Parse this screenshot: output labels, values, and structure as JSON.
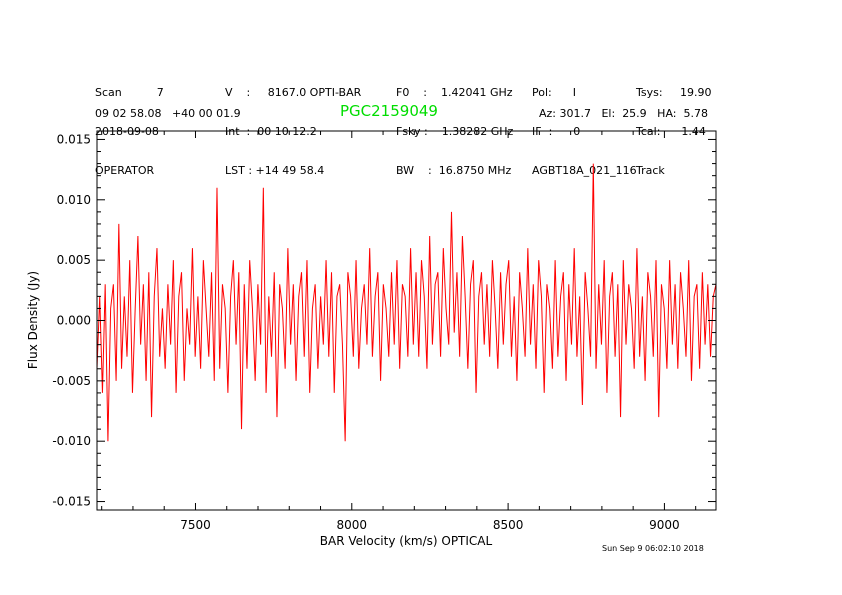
{
  "header": {
    "col1": [
      "Scan          7",
      "2018-09-08",
      "OPERATOR"
    ],
    "col2": [
      "V    :     8167.0 OPTI-BAR",
      "Int  :  00 10 12.2",
      "LST : +14 49 58.4"
    ],
    "col3": [
      "F0    :    1.42041 GHz",
      "Fsky :    1.38282 GHz",
      "BW    :  16.8750 MHz"
    ],
    "col4": [
      "Pol:      I",
      "IF  :      0",
      "AGBT18A_021_116"
    ],
    "col5": [
      "Tsys:     19.90",
      "Tcal:      1.44",
      "Track"
    ],
    "coords": "09 02 58.08   +40 00 01.9",
    "object": "PGC2159049",
    "pointing": "Az: 301.7   El:  25.9   HA:  5.78",
    "timestamp": "Sun Sep  9 06:02:10 2018"
  },
  "chart_data": {
    "type": "line",
    "title": "PGC2159049",
    "xlabel": "BAR Velocity (km/s) OPTICAL",
    "ylabel": "Flux Density (Jy)",
    "xlim": [
      7185,
      9165
    ],
    "ylim": [
      -0.0157,
      0.0157
    ],
    "xticks": [
      7500,
      8000,
      8500,
      9000
    ],
    "yticks": [
      -0.015,
      -0.01,
      -0.005,
      0.0,
      0.005,
      0.01,
      0.015
    ],
    "ytick_labels": [
      "-0.015",
      "-0.010",
      "-0.005",
      "0.000",
      "0.005",
      "0.010",
      "0.015"
    ],
    "grid": false,
    "series": [
      {
        "color": "#ff0000",
        "x_start": 7185,
        "x_end": 9165,
        "values": [
          -0.004,
          0.002,
          -0.006,
          0.003,
          -0.01,
          0.001,
          0.003,
          -0.005,
          0.008,
          -0.004,
          0.002,
          -0.003,
          0.005,
          -0.006,
          0.001,
          0.007,
          -0.002,
          0.003,
          -0.005,
          0.004,
          -0.008,
          0.002,
          0.006,
          -0.003,
          0.001,
          -0.004,
          0.003,
          -0.002,
          0.005,
          -0.006,
          0.002,
          0.004,
          -0.005,
          0.001,
          -0.002,
          0.006,
          -0.003,
          0.002,
          -0.004,
          0.005,
          0.001,
          -0.003,
          0.004,
          -0.005,
          0.011,
          -0.004,
          0.003,
          0.001,
          -0.006,
          0.002,
          0.005,
          -0.002,
          0.004,
          -0.009,
          0.003,
          -0.004,
          0.005,
          0.001,
          -0.005,
          0.003,
          -0.002,
          0.011,
          -0.006,
          0.002,
          -0.003,
          0.004,
          -0.008,
          0.003,
          0.001,
          -0.004,
          0.006,
          -0.002,
          0.003,
          -0.005,
          0.002,
          0.004,
          -0.003,
          0.005,
          -0.006,
          0.001,
          0.003,
          -0.004,
          0.002,
          -0.002,
          0.005,
          -0.003,
          0.004,
          -0.006,
          0.002,
          0.003,
          -0.002,
          -0.01,
          0.004,
          0.002,
          -0.003,
          0.005,
          -0.004,
          0.001,
          0.003,
          -0.002,
          0.006,
          -0.003,
          0.002,
          0.004,
          -0.005,
          0.003,
          0.001,
          -0.003,
          0.004,
          -0.002,
          0.005,
          -0.004,
          0.003,
          0.002,
          -0.003,
          0.006,
          -0.002,
          0.004,
          -0.003,
          0.005,
          0.002,
          -0.004,
          0.007,
          -0.002,
          0.003,
          0.004,
          -0.003,
          0.006,
          0.001,
          -0.002,
          0.009,
          -0.001,
          0.004,
          -0.003,
          0.007,
          0.002,
          -0.004,
          0.003,
          0.005,
          -0.006,
          0.002,
          0.004,
          -0.002,
          0.003,
          -0.003,
          0.005,
          0.001,
          -0.004,
          0.004,
          -0.002,
          0.003,
          0.005,
          -0.003,
          0.002,
          -0.005,
          0.004,
          0.001,
          -0.003,
          0.006,
          -0.002,
          0.003,
          -0.004,
          0.005,
          0.002,
          -0.006,
          0.003,
          0.001,
          -0.004,
          0.005,
          -0.003,
          0.002,
          0.004,
          -0.005,
          0.003,
          -0.002,
          0.006,
          -0.003,
          0.002,
          -0.007,
          0.004,
          0.001,
          -0.003,
          0.013,
          -0.004,
          0.003,
          -0.002,
          0.005,
          -0.006,
          0.002,
          0.004,
          -0.003,
          0.003,
          -0.008,
          0.005,
          -0.002,
          0.003,
          0.001,
          -0.004,
          0.006,
          -0.003,
          0.002,
          -0.005,
          0.004,
          0.002,
          -0.003,
          0.005,
          -0.008,
          0.003,
          0.001,
          -0.004,
          0.005,
          -0.002,
          0.003,
          -0.004,
          0.004,
          0.001,
          -0.003,
          0.005,
          -0.005,
          0.002,
          0.003,
          -0.004,
          0.004,
          -0.002,
          0.003,
          -0.003,
          0.002,
          0.003
        ]
      }
    ]
  }
}
